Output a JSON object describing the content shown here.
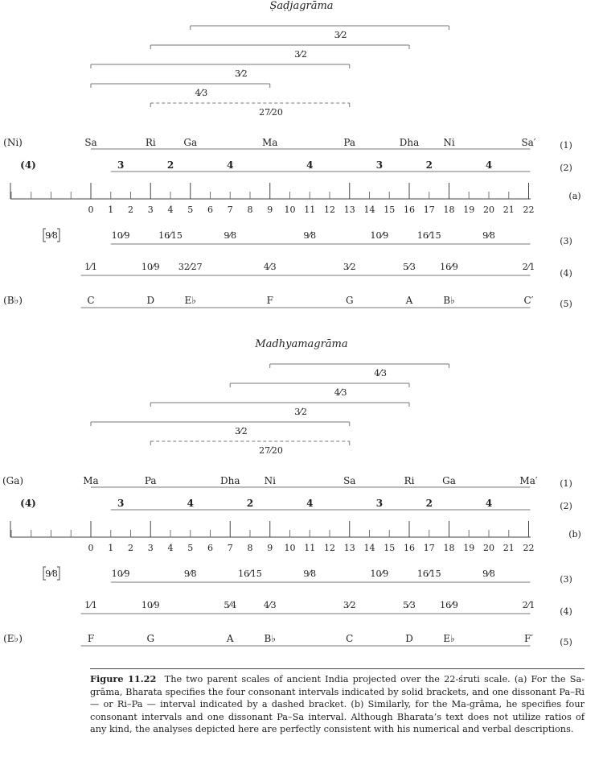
{
  "figure": {
    "diagrams": [
      {
        "id": "a",
        "title": "Ṣaḍjagrāma",
        "brackets": [
          {
            "from": 5,
            "to": 18,
            "label": "3/2",
            "style": "solid"
          },
          {
            "from": 3,
            "to": 16,
            "label": "3/2",
            "style": "solid"
          },
          {
            "from": 0,
            "to": 13,
            "label": "3/2",
            "style": "solid"
          },
          {
            "from": 0,
            "to": 9,
            "label": "4/3",
            "style": "solid"
          },
          {
            "from": 3,
            "to": 13,
            "label": "27/20",
            "style": "dashed"
          }
        ],
        "row1_left": "(Ni)",
        "row1": [
          {
            "text": "Sa",
            "pos": 0
          },
          {
            "text": "Ri",
            "pos": 3
          },
          {
            "text": "Ga",
            "pos": 5
          },
          {
            "text": "Ma",
            "pos": 9
          },
          {
            "text": "Pa",
            "pos": 13
          },
          {
            "text": "Dha",
            "pos": 16
          },
          {
            "text": "Ni",
            "pos": 18
          },
          {
            "text": "Sa",
            "pos": 22,
            "prime": true
          }
        ],
        "row2_left": "(4)",
        "row2": [
          {
            "text": "3",
            "pos": 1.5
          },
          {
            "text": "2",
            "pos": 4
          },
          {
            "text": "4",
            "pos": 7
          },
          {
            "text": "4",
            "pos": 11
          },
          {
            "text": "3",
            "pos": 14.5
          },
          {
            "text": "2",
            "pos": 17
          },
          {
            "text": "4",
            "pos": 20
          }
        ],
        "row3_left": "9/8",
        "row3": [
          {
            "text": "10/9",
            "pos": 1.5
          },
          {
            "text": "16/15",
            "pos": 4
          },
          {
            "text": "9/8",
            "pos": 7
          },
          {
            "text": "9/8",
            "pos": 11
          },
          {
            "text": "10/9",
            "pos": 14.5
          },
          {
            "text": "16/15",
            "pos": 17
          },
          {
            "text": "9/8",
            "pos": 20
          }
        ],
        "row4": [
          {
            "text": "1/1",
            "pos": 0
          },
          {
            "text": "10/9",
            "pos": 3
          },
          {
            "text": "32/27",
            "pos": 5
          },
          {
            "text": "4/3",
            "pos": 9
          },
          {
            "text": "3/2",
            "pos": 13
          },
          {
            "text": "5/3",
            "pos": 16
          },
          {
            "text": "16/9",
            "pos": 18
          },
          {
            "text": "2/1",
            "pos": 22
          }
        ],
        "row5_left": "(B♭)",
        "row5": [
          {
            "text": "C",
            "pos": 0
          },
          {
            "text": "D",
            "pos": 3
          },
          {
            "text": "E♭",
            "pos": 5
          },
          {
            "text": "F",
            "pos": 9
          },
          {
            "text": "G",
            "pos": 13
          },
          {
            "text": "A",
            "pos": 16
          },
          {
            "text": "B♭",
            "pos": 18
          },
          {
            "text": "C",
            "pos": 22,
            "prime": true
          }
        ],
        "scale_marks": [
          0,
          3,
          5,
          9,
          13,
          16,
          18,
          22
        ],
        "side_label": "(a)"
      },
      {
        "id": "b",
        "title": "Madhyamagrāma",
        "brackets": [
          {
            "from": 9,
            "to": 18,
            "label": "4/3",
            "style": "solid"
          },
          {
            "from": 7,
            "to": 16,
            "label": "4/3",
            "style": "solid"
          },
          {
            "from": 3,
            "to": 16,
            "label": "3/2",
            "style": "solid"
          },
          {
            "from": 0,
            "to": 13,
            "label": "3/2",
            "style": "solid"
          },
          {
            "from": 3,
            "to": 13,
            "label": "27/20",
            "style": "dashed"
          }
        ],
        "row1_left": "(Ga)",
        "row1": [
          {
            "text": "Ma",
            "pos": 0
          },
          {
            "text": "Pa",
            "pos": 3
          },
          {
            "text": "Dha",
            "pos": 7
          },
          {
            "text": "Ni",
            "pos": 9
          },
          {
            "text": "Sa",
            "pos": 13
          },
          {
            "text": "Ri",
            "pos": 16
          },
          {
            "text": "Ga",
            "pos": 18
          },
          {
            "text": "Ma",
            "pos": 22,
            "prime": true
          }
        ],
        "row2_left": "(4)",
        "row2": [
          {
            "text": "3",
            "pos": 1.5
          },
          {
            "text": "4",
            "pos": 5
          },
          {
            "text": "2",
            "pos": 8
          },
          {
            "text": "4",
            "pos": 11
          },
          {
            "text": "3",
            "pos": 14.5
          },
          {
            "text": "2",
            "pos": 17
          },
          {
            "text": "4",
            "pos": 20
          }
        ],
        "row3_left": "9/8",
        "row3": [
          {
            "text": "10/9",
            "pos": 1.5
          },
          {
            "text": "9/8",
            "pos": 5
          },
          {
            "text": "16/15",
            "pos": 8
          },
          {
            "text": "9/8",
            "pos": 11
          },
          {
            "text": "10/9",
            "pos": 14.5
          },
          {
            "text": "16/15",
            "pos": 17
          },
          {
            "text": "9/8",
            "pos": 20
          }
        ],
        "row4": [
          {
            "text": "1/1",
            "pos": 0
          },
          {
            "text": "10/9",
            "pos": 3
          },
          {
            "text": "5/4",
            "pos": 7
          },
          {
            "text": "4/3",
            "pos": 9
          },
          {
            "text": "3/2",
            "pos": 13
          },
          {
            "text": "5/3",
            "pos": 16
          },
          {
            "text": "16/9",
            "pos": 18
          },
          {
            "text": "2/1",
            "pos": 22
          }
        ],
        "row5_left": "(E♭)",
        "row5": [
          {
            "text": "F",
            "pos": 0
          },
          {
            "text": "G",
            "pos": 3
          },
          {
            "text": "A",
            "pos": 7
          },
          {
            "text": "B♭",
            "pos": 9
          },
          {
            "text": "C",
            "pos": 13
          },
          {
            "text": "D",
            "pos": 16
          },
          {
            "text": "E♭",
            "pos": 18
          },
          {
            "text": "F",
            "pos": 22,
            "prime": true
          }
        ],
        "scale_marks": [
          0,
          3,
          7,
          9,
          13,
          16,
          18,
          22
        ],
        "side_label": "(b)"
      }
    ],
    "row_numbers": [
      "(1)",
      "(2)",
      "(3)",
      "(4)",
      "(5)"
    ],
    "scale_numbers": [
      "0",
      "1",
      "2",
      "3",
      "4",
      "5",
      "6",
      "7",
      "8",
      "9",
      "10",
      "11",
      "12",
      "13",
      "14",
      "15",
      "16",
      "17",
      "18",
      "19",
      "20",
      "21",
      "22"
    ]
  },
  "caption": {
    "label": "Figure 11.22",
    "text": "The two parent scales of ancient India projected over the 22-śruti scale. (a) For the Sa-grāma, Bharata specifies the four consonant intervals indicated by solid brackets, and one dissonant Pa–Ri — or Ri–Pa — interval indicated by a dashed bracket. (b) Similarly, for the Ma-grāma, he specifies four consonant intervals and one dissonant Pa–Sa interval. Although Bharata’s text does not utilize ratios of any kind, the analyses depicted here are perfectly consistent with his numerical and verbal descriptions."
  }
}
